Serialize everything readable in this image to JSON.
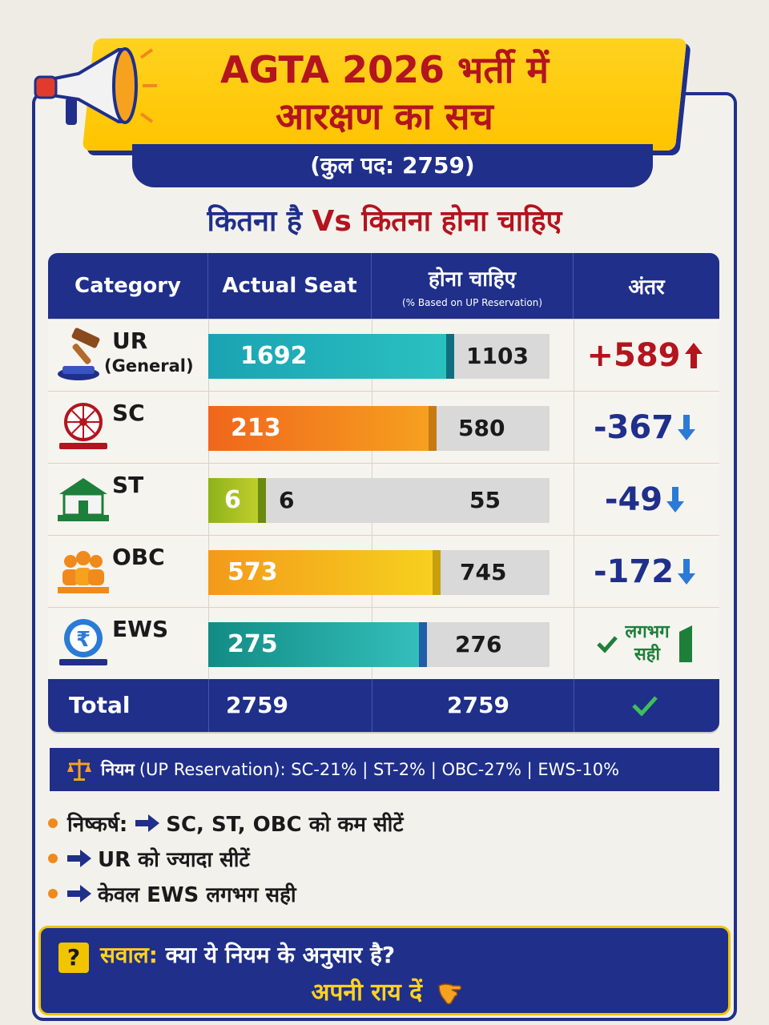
{
  "header": {
    "title_line1": "AGTA 2026 भर्ती में",
    "title_line2": "आरक्षण का सच",
    "subtitle": "(कुल पद: 2759)"
  },
  "tagline": {
    "part1": "कितना है ",
    "vs": "Vs",
    "part2": " कितना होना चाहिए"
  },
  "table": {
    "columns": {
      "category": "Category",
      "actual": "Actual Seat",
      "should": "होना चाहिए",
      "should_note": "(% Based on UP Reservation)",
      "diff": "अंतर"
    },
    "rows": [
      {
        "name": "UR",
        "sub": "(General)",
        "actual": "1692",
        "should": "1103",
        "diff": "+589",
        "trend": "up",
        "actual_fraction": 0.72,
        "colors": [
          "#1aa3b3",
          "#2bc1c1"
        ],
        "icon": "gavel-icon"
      },
      {
        "name": "SC",
        "sub": "",
        "actual": "213",
        "should": "580",
        "diff": "-367",
        "trend": "down",
        "actual_fraction": 0.67,
        "colors": [
          "#f0661c",
          "#f6a21f"
        ],
        "icon": "ashoka-chakra-icon"
      },
      {
        "name": "ST",
        "sub": "",
        "actual": "6",
        "should": "55",
        "diff": "-49",
        "trend": "down",
        "actual_fraction": 0.17,
        "colors": [
          "#8fb21a",
          "#c7d230"
        ],
        "icon": "tribal-hut-icon"
      },
      {
        "name": "OBC",
        "sub": "",
        "actual": "573",
        "should": "745",
        "diff": "-172",
        "trend": "down",
        "actual_fraction": 0.68,
        "colors": [
          "#f39a1a",
          "#f6d21f"
        ],
        "icon": "people-group-icon"
      },
      {
        "name": "EWS",
        "sub": "",
        "actual": "275",
        "should": "276",
        "diff_line1": "लगभग",
        "diff_line2": "सही",
        "trend": "ok",
        "actual_fraction": 0.64,
        "colors": [
          "#128c85",
          "#35c0bd"
        ],
        "icon": "rupee-coin-icon"
      }
    ],
    "st_extra_value": "6",
    "total": {
      "label": "Total",
      "actual": "2759",
      "should": "2759"
    }
  },
  "rule": {
    "label": "नियम",
    "text": "(UP Reservation): SC-21% | ST-2% | OBC-27% | EWS-10%"
  },
  "conclusion": {
    "label": "निष्कर्ष:",
    "items": [
      "SC, ST, OBC को कम सीटें",
      "UR को ज्यादा सीटें",
      "केवल EWS लगभग सही"
    ]
  },
  "question": {
    "mark": "?",
    "label": "सवाल:",
    "text": " क्या ये नियम के अनुसार है?",
    "cta": "अपनी राय दें"
  }
}
